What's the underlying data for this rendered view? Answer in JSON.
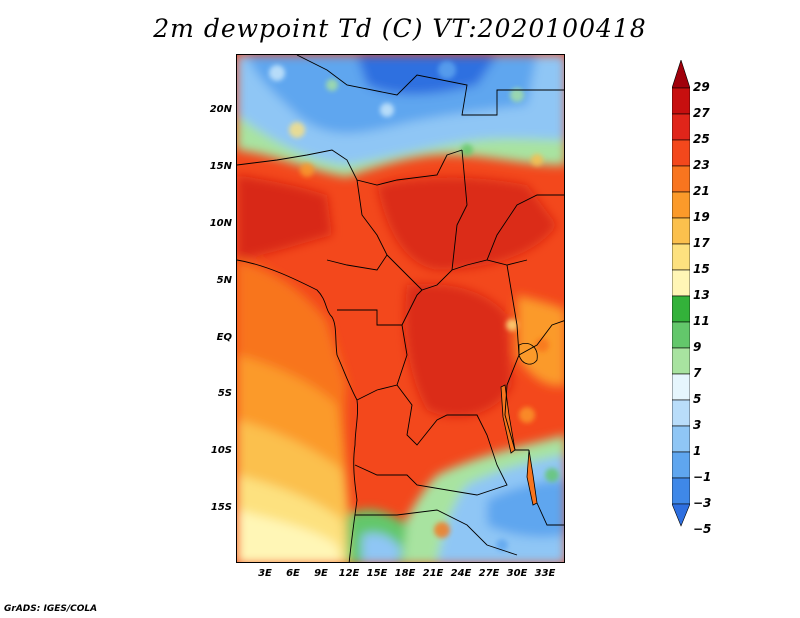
{
  "title": "2m dewpoint Td (C) VT:2020100418",
  "map": {
    "lat_labels": [
      "20N",
      "15N",
      "10N",
      "5N",
      "EQ",
      "5S",
      "10S",
      "15S"
    ],
    "lon_labels": [
      "3E",
      "6E",
      "9E",
      "12E",
      "15E",
      "18E",
      "21E",
      "24E",
      "27E",
      "30E",
      "33E"
    ],
    "colors": {
      "deep_red": "#c70f0f",
      "red": "#e0251a",
      "red_orange": "#f3481c",
      "orange": "#f8751f",
      "light_orange": "#fb9a2a",
      "amber": "#fbc04d",
      "pale_yellow": "#fde17f",
      "cream": "#fff6b6",
      "green": "#63c76b",
      "light_green": "#a8e3a0",
      "pale_blue": "#cdeafc",
      "sky_blue": "#8fc6f5",
      "blue": "#5fa6ef",
      "deep_blue": "#2e6fe0"
    }
  },
  "colorbar": {
    "labels": [
      "29",
      "27",
      "25",
      "23",
      "21",
      "19",
      "17",
      "15",
      "13",
      "11",
      "9",
      "7",
      "5",
      "3",
      "1",
      "−1",
      "−3",
      "−5"
    ],
    "colors": [
      "#a0000b",
      "#c70f0f",
      "#e0251a",
      "#f3481c",
      "#f8751f",
      "#fb9a2a",
      "#fbc04d",
      "#fde17f",
      "#fff6b6",
      "#33b23a",
      "#63c76b",
      "#a8e3a0",
      "#e6f6fd",
      "#b9ddfa",
      "#8fc6f5",
      "#5fa6ef",
      "#3f88e8",
      "#2e6fe0"
    ]
  },
  "footer": "GrADS: IGES/COLA"
}
